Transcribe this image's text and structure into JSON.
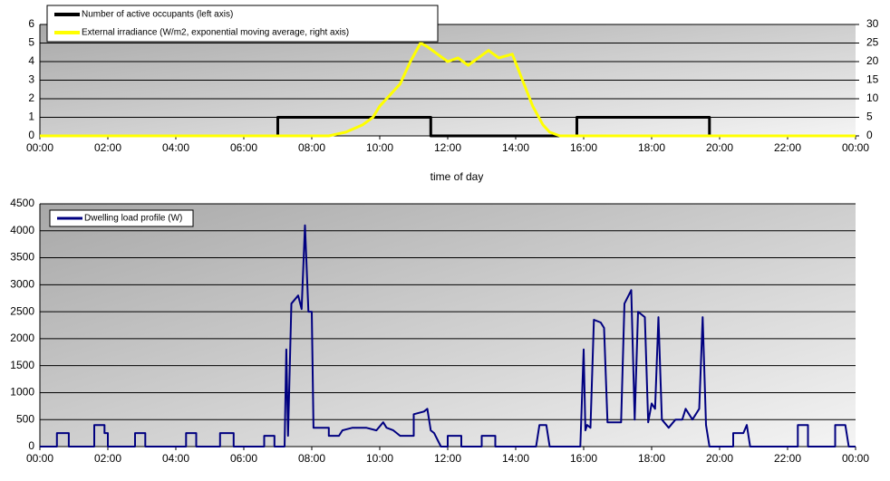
{
  "chart_data": [
    {
      "type": "line",
      "xlabel": "time of day",
      "legend": "top-left",
      "grid": true,
      "xlim": [
        0,
        24
      ],
      "xticks": [
        {
          "value": 0,
          "label": "00:00"
        },
        {
          "value": 2,
          "label": "02:00"
        },
        {
          "value": 4,
          "label": "04:00"
        },
        {
          "value": 6,
          "label": "06:00"
        },
        {
          "value": 8,
          "label": "08:00"
        },
        {
          "value": 10,
          "label": "10:00"
        },
        {
          "value": 12,
          "label": "12:00"
        },
        {
          "value": 14,
          "label": "14:00"
        },
        {
          "value": 16,
          "label": "16:00"
        },
        {
          "value": 18,
          "label": "18:00"
        },
        {
          "value": 20,
          "label": "20:00"
        },
        {
          "value": 22,
          "label": "22:00"
        },
        {
          "value": 24,
          "label": "00:00"
        }
      ],
      "ylim": [
        0,
        6
      ],
      "yticks": [
        0,
        1,
        2,
        3,
        4,
        5,
        6
      ],
      "y2lim": [
        0,
        30
      ],
      "y2ticks": [
        0,
        5,
        10,
        15,
        20,
        25,
        30
      ],
      "series": [
        {
          "name": "Number of active occupants (left axis)",
          "color": "#000000",
          "x": [
            0,
            7,
            7,
            11.5,
            11.5,
            15.8,
            15.8,
            19.7,
            19.7,
            24
          ],
          "values": [
            0,
            0,
            1,
            1,
            0,
            0,
            1,
            1,
            0,
            0
          ]
        },
        {
          "name": "External irradiance (W/m2, exponential moving average, right axis)",
          "color": "#ffff00",
          "axis": "y2",
          "x": [
            0,
            8.5,
            9,
            9.5,
            9.8,
            10,
            10.3,
            10.6,
            10.9,
            11.2,
            11.4,
            11.7,
            12,
            12.3,
            12.6,
            12.9,
            13.2,
            13.5,
            13.9,
            14.2,
            14.5,
            14.8,
            15,
            15.3,
            24
          ],
          "values": [
            0,
            0,
            1,
            3,
            5,
            8,
            11,
            14,
            20,
            25,
            24,
            22,
            20,
            21,
            19,
            21,
            23,
            21,
            22,
            15,
            8,
            3,
            1,
            0,
            0
          ]
        }
      ]
    },
    {
      "type": "line",
      "legend": "top-left",
      "grid": true,
      "xlim": [
        0,
        24
      ],
      "xticks": [
        {
          "value": 0,
          "label": "00:00"
        },
        {
          "value": 2,
          "label": "02:00"
        },
        {
          "value": 4,
          "label": "04:00"
        },
        {
          "value": 6,
          "label": "06:00"
        },
        {
          "value": 8,
          "label": "08:00"
        },
        {
          "value": 10,
          "label": "10:00"
        },
        {
          "value": 12,
          "label": "12:00"
        },
        {
          "value": 14,
          "label": "14:00"
        },
        {
          "value": 16,
          "label": "16:00"
        },
        {
          "value": 18,
          "label": "18:00"
        },
        {
          "value": 20,
          "label": "20:00"
        },
        {
          "value": 22,
          "label": "22:00"
        },
        {
          "value": 24,
          "label": "00:00"
        }
      ],
      "ylim": [
        0,
        4500
      ],
      "yticks": [
        0,
        500,
        1000,
        1500,
        2000,
        2500,
        3000,
        3500,
        4000,
        4500
      ],
      "series": [
        {
          "name": "Dwelling load profile (W)",
          "color": "#000080",
          "x": [
            0,
            0.5,
            0.5,
            0.85,
            0.85,
            1.6,
            1.6,
            1.9,
            1.9,
            2.0,
            2.0,
            2.8,
            2.8,
            3.1,
            3.1,
            4.3,
            4.3,
            4.6,
            4.6,
            5.3,
            5.3,
            5.7,
            5.7,
            6.6,
            6.6,
            6.9,
            6.9,
            7.2,
            7.25,
            7.3,
            7.4,
            7.6,
            7.7,
            7.8,
            7.9,
            8.0,
            8.05,
            8.5,
            8.5,
            8.8,
            8.9,
            9.2,
            9.6,
            9.9,
            10.1,
            10.2,
            10.4,
            10.6,
            11.0,
            11.0,
            11.3,
            11.4,
            11.5,
            11.6,
            11.8,
            12.0,
            12.0,
            12.4,
            12.4,
            13.0,
            13.0,
            13.4,
            13.4,
            14.6,
            14.7,
            14.9,
            15.0,
            15.9,
            16.0,
            16.05,
            16.1,
            16.2,
            16.3,
            16.5,
            16.6,
            16.7,
            17.0,
            17.1,
            17.2,
            17.4,
            17.5,
            17.6,
            17.8,
            17.9,
            18.0,
            18.1,
            18.2,
            18.3,
            18.5,
            18.7,
            18.9,
            19.0,
            19.2,
            19.4,
            19.5,
            19.6,
            19.7,
            20.4,
            20.4,
            20.7,
            20.8,
            20.9,
            22.3,
            22.3,
            22.6,
            22.6,
            23.4,
            23.4,
            23.7,
            23.8,
            24
          ],
          "values": [
            0,
            0,
            250,
            250,
            0,
            0,
            400,
            400,
            250,
            250,
            0,
            0,
            250,
            250,
            0,
            0,
            250,
            250,
            0,
            0,
            250,
            250,
            0,
            0,
            200,
            200,
            0,
            0,
            1800,
            200,
            2650,
            2800,
            2550,
            4100,
            2500,
            2500,
            350,
            350,
            200,
            200,
            300,
            350,
            350,
            300,
            450,
            350,
            300,
            200,
            200,
            600,
            650,
            700,
            300,
            250,
            0,
            0,
            200,
            200,
            0,
            0,
            200,
            200,
            0,
            0,
            400,
            400,
            0,
            0,
            1800,
            300,
            400,
            350,
            2350,
            2300,
            2200,
            450,
            450,
            450,
            2650,
            2900,
            500,
            2500,
            2400,
            450,
            800,
            700,
            2400,
            500,
            350,
            500,
            500,
            700,
            500,
            700,
            2400,
            400,
            0,
            0,
            250,
            250,
            400,
            0,
            0,
            400,
            400,
            0,
            0,
            400,
            400,
            0,
            0
          ]
        }
      ]
    }
  ]
}
